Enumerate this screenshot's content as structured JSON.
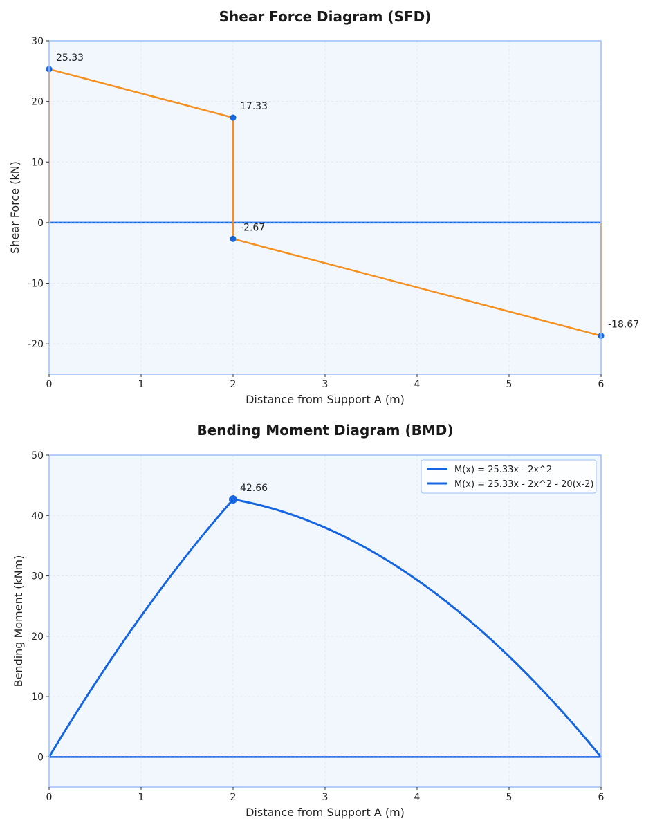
{
  "colors": {
    "plot_bg": "#f2f7fe",
    "frame": "#9dbff5",
    "grid": "#dfe7f2",
    "blue": "#1565e0",
    "orange": "#f5901e"
  },
  "chart_data": [
    {
      "type": "line",
      "title": "Shear Force Diagram (SFD)",
      "xlabel": "Distance from Support A (m)",
      "ylabel": "Shear Force (kN)",
      "xlim": [
        0,
        6
      ],
      "ylim": [
        -25,
        30
      ],
      "xticks": [
        0,
        1,
        2,
        3,
        4,
        5,
        6
      ],
      "yticks": [
        -20,
        -10,
        0,
        10,
        20,
        30
      ],
      "grid": true,
      "series": [
        {
          "color": "#f5901e",
          "points": [
            [
              0,
              0
            ],
            [
              0,
              25.33
            ],
            [
              2,
              17.33
            ],
            [
              2,
              -2.67
            ],
            [
              6,
              -18.67
            ],
            [
              6,
              0
            ]
          ]
        }
      ],
      "baseline": 0,
      "markers": [
        {
          "x": 0,
          "y": 25.33,
          "label": "25.33"
        },
        {
          "x": 2,
          "y": 17.33,
          "label": "17.33"
        },
        {
          "x": 2,
          "y": -2.67,
          "label": "-2.67"
        },
        {
          "x": 6,
          "y": -18.67,
          "label": "-18.67"
        }
      ]
    },
    {
      "type": "line",
      "title": "Bending Moment Diagram (BMD)",
      "xlabel": "Distance from Support A (m)",
      "ylabel": "Bending Moment (kNm)",
      "xlim": [
        0,
        6
      ],
      "ylim": [
        -5,
        50
      ],
      "xticks": [
        0,
        1,
        2,
        3,
        4,
        5,
        6
      ],
      "yticks": [
        0,
        10,
        20,
        30,
        40,
        50
      ],
      "grid": true,
      "legend": "top-right",
      "series": [
        {
          "name": "M(x) = 25.33x - 2x^2",
          "color": "#1565e0",
          "formula": "25.33x - 2x^2",
          "x_range": [
            0,
            2
          ]
        },
        {
          "name": "M(x) = 25.33x - 2x^2 - 20(x-2)",
          "color": "#1565e0",
          "formula": "25.33x - 2x^2 - 20(x-2)",
          "x_range": [
            2,
            6
          ]
        }
      ],
      "baseline": 0,
      "markers": [
        {
          "x": 2,
          "y": 42.66,
          "label": "42.66"
        }
      ]
    }
  ]
}
